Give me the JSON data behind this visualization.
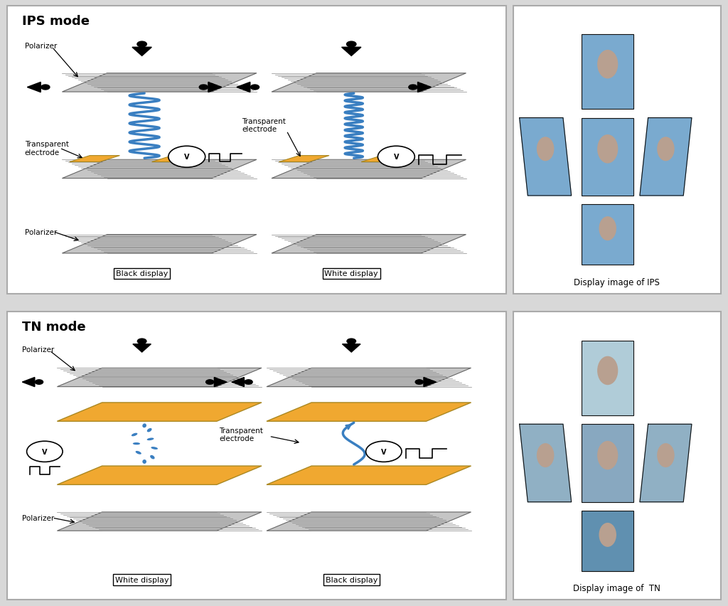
{
  "bg_color": "#d8d8d8",
  "panel_bg": "#ffffff",
  "title_ips": "IPS mode",
  "title_tn": "TN mode",
  "caption_ips": "Display image of IPS",
  "caption_tn": "Display image of  TN",
  "gray_color": "#aaaaaa",
  "stripe_color": "#888888",
  "electrode_color": "#f0a830",
  "blue_color": "#3a7fc1",
  "black": "#000000",
  "white": "#ffffff",
  "label_polarizer": "Polarizer",
  "label_black": "Black display",
  "label_white": "White display"
}
